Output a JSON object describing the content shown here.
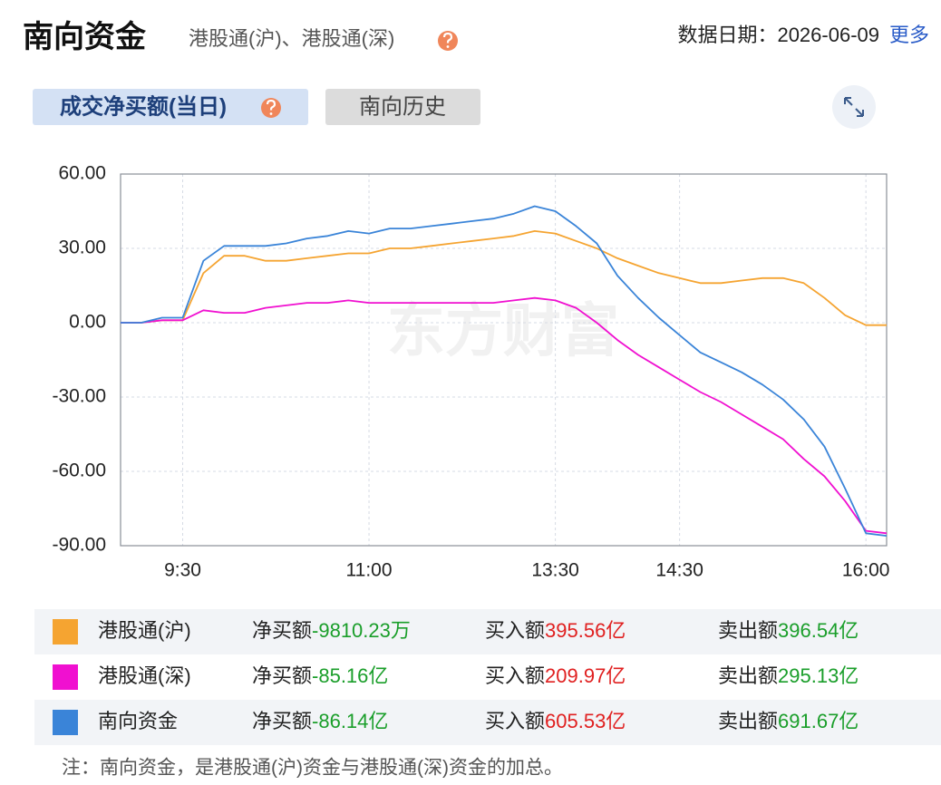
{
  "header": {
    "title": "南向资金",
    "subtitle": "港股通(沪)、港股通(深)",
    "date_label": "数据日期：",
    "date": "2026-06-09",
    "more": "更多"
  },
  "tabs": [
    "成交净买额(当日)",
    "南向历史"
  ],
  "chart_data": {
    "type": "line",
    "watermark": "东方财富",
    "x": [
      0,
      10,
      20,
      30,
      40,
      50,
      60,
      70,
      80,
      90,
      100,
      110,
      120,
      130,
      140,
      150,
      160,
      170,
      180,
      190,
      200,
      210,
      220,
      230,
      240,
      250,
      260,
      270,
      280,
      290,
      300,
      310,
      320,
      330,
      340,
      350,
      360,
      370
    ],
    "xlim": [
      0,
      370
    ],
    "xticks": [
      {
        "value": 30,
        "label": "9:30"
      },
      {
        "value": 120,
        "label": "11:00"
      },
      {
        "value": 210,
        "label": "13:30"
      },
      {
        "value": 270,
        "label": "14:30"
      },
      {
        "value": 360,
        "label": "16:00"
      }
    ],
    "ylim": [
      -90,
      60
    ],
    "yticks": [
      {
        "value": 60,
        "label": "60.00"
      },
      {
        "value": 30,
        "label": "30.00"
      },
      {
        "value": 0,
        "label": "0.00"
      },
      {
        "value": -30,
        "label": "-30.00"
      },
      {
        "value": -60,
        "label": "-60.00"
      },
      {
        "value": -90,
        "label": "-90.00"
      }
    ],
    "grid": true,
    "series": [
      {
        "name": "港股通(沪)",
        "color": "#f5a431",
        "values": [
          0,
          0,
          1,
          1,
          20,
          27,
          27,
          25,
          25,
          26,
          27,
          28,
          28,
          30,
          30,
          31,
          32,
          33,
          34,
          35,
          37,
          36,
          33,
          30,
          26,
          23,
          20,
          18,
          16,
          16,
          17,
          18,
          18,
          16,
          10,
          3,
          -1,
          -1
        ]
      },
      {
        "name": "港股通(深)",
        "color": "#f010d0",
        "values": [
          0,
          0,
          1,
          1,
          5,
          4,
          4,
          6,
          7,
          8,
          8,
          9,
          8,
          8,
          8,
          8,
          8,
          8,
          8,
          9,
          10,
          9,
          6,
          0,
          -7,
          -13,
          -18,
          -23,
          -28,
          -32,
          -37,
          -42,
          -47,
          -55,
          -62,
          -72,
          -84,
          -85
        ]
      },
      {
        "name": "南向资金",
        "color": "#3a84d8",
        "values": [
          0,
          0,
          2,
          2,
          25,
          31,
          31,
          31,
          32,
          34,
          35,
          37,
          36,
          38,
          38,
          39,
          40,
          41,
          42,
          44,
          47,
          45,
          39,
          32,
          19,
          10,
          2,
          -5,
          -12,
          -16,
          -20,
          -25,
          -31,
          -39,
          -50,
          -67,
          -85,
          -86
        ]
      }
    ]
  },
  "table": {
    "rows": [
      {
        "net_label": "净买额",
        "net": "-9810.23万",
        "buy_label": "买入额",
        "buy": "395.56亿",
        "sell_label": "卖出额",
        "sell": "396.54亿"
      },
      {
        "net_label": "净买额",
        "net": "-85.16亿",
        "buy_label": "买入额",
        "buy": "209.97亿",
        "sell_label": "卖出额",
        "sell": "295.13亿"
      },
      {
        "net_label": "净买额",
        "net": "-86.14亿",
        "buy_label": "买入额",
        "buy": "605.53亿",
        "sell_label": "卖出额",
        "sell": "691.67亿"
      }
    ]
  },
  "note": "注：南向资金，是港股通(沪)资金与港股通(深)资金的加总。"
}
